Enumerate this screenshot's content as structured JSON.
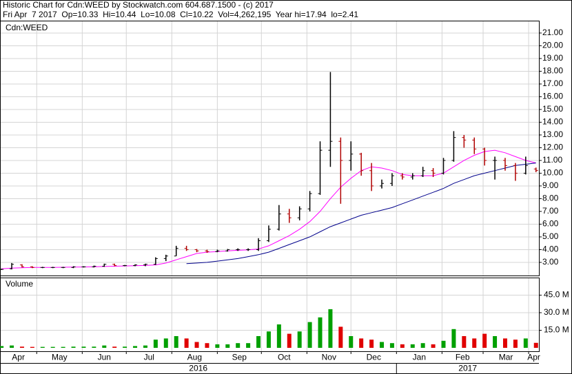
{
  "chart_data": {
    "type": "ohlc",
    "title": "Historic Chart for Cdn:WEED by Stockwatch.com 604.687.1500 - (c) 2017",
    "subtitle": "Fri Apr  7 2017  Op=10.33  Hi=10.44  Lo=10.08  Cl=10.22  Vol=4,262,195  Year hi=17.94  lo=2.41",
    "symbol_label": "Cdn:WEED",
    "volume_label": "Volume",
    "x": [
      0,
      7,
      14,
      21,
      28,
      35,
      42,
      49,
      56,
      63,
      70,
      77,
      84,
      91,
      98,
      105,
      112,
      119,
      126,
      133,
      140,
      147,
      154,
      161,
      168,
      175,
      182,
      189,
      196,
      203,
      210,
      217,
      224,
      231,
      238,
      245,
      252,
      259,
      266,
      273,
      280,
      287,
      294,
      301,
      308,
      315,
      322,
      329,
      336,
      343,
      350,
      357,
      364
    ],
    "open": [
      2.45,
      2.5,
      2.8,
      2.65,
      2.6,
      2.6,
      2.6,
      2.6,
      2.65,
      2.65,
      2.7,
      2.85,
      2.75,
      2.75,
      2.8,
      2.85,
      3.3,
      3.5,
      4.1,
      4.0,
      3.9,
      3.85,
      3.9,
      4.0,
      4.0,
      4.0,
      4.7,
      5.6,
      6.8,
      6.5,
      7.2,
      8.4,
      11.8,
      12.5,
      11.0,
      11.5,
      10.2,
      9.0,
      9.2,
      9.8,
      9.7,
      9.8,
      10.2,
      10.0,
      11.0,
      12.8,
      12.6,
      11.9,
      11.0,
      11.0,
      10.6,
      10.0,
      10.33
    ],
    "high": [
      2.5,
      2.95,
      2.85,
      2.7,
      2.65,
      2.65,
      2.65,
      2.7,
      2.7,
      2.75,
      2.9,
      2.9,
      2.8,
      2.85,
      2.9,
      3.4,
      3.6,
      4.3,
      4.3,
      4.05,
      4.0,
      4.0,
      4.05,
      4.1,
      4.1,
      4.9,
      5.9,
      7.5,
      7.2,
      7.4,
      8.6,
      12.5,
      17.94,
      12.8,
      12.5,
      11.6,
      10.8,
      9.5,
      10.0,
      10.0,
      10.0,
      10.5,
      10.4,
      11.2,
      13.3,
      13.0,
      12.8,
      12.0,
      11.3,
      11.2,
      10.8,
      11.3,
      10.44
    ],
    "low": [
      2.41,
      2.45,
      2.6,
      2.55,
      2.55,
      2.55,
      2.55,
      2.55,
      2.6,
      2.6,
      2.65,
      2.7,
      2.7,
      2.7,
      2.7,
      2.8,
      3.1,
      3.5,
      3.9,
      3.8,
      3.75,
      3.8,
      3.85,
      3.9,
      3.9,
      3.9,
      4.6,
      5.5,
      6.1,
      6.3,
      7.0,
      8.3,
      10.5,
      7.6,
      10.2,
      9.8,
      8.6,
      8.8,
      9.0,
      9.5,
      9.5,
      9.7,
      9.7,
      9.9,
      10.9,
      12.0,
      11.5,
      10.6,
      9.5,
      10.2,
      9.4,
      9.9,
      10.08
    ],
    "close": [
      2.45,
      2.85,
      2.65,
      2.6,
      2.6,
      2.6,
      2.6,
      2.65,
      2.65,
      2.7,
      2.85,
      2.75,
      2.75,
      2.8,
      2.85,
      3.3,
      3.5,
      4.1,
      4.0,
      3.9,
      3.85,
      3.9,
      4.0,
      4.0,
      4.0,
      4.7,
      5.6,
      6.8,
      6.5,
      7.2,
      8.4,
      11.8,
      12.5,
      11.0,
      11.5,
      10.2,
      9.0,
      9.2,
      9.8,
      9.7,
      9.8,
      10.2,
      10.0,
      11.0,
      12.8,
      12.6,
      11.9,
      11.0,
      11.0,
      10.6,
      10.0,
      10.6,
      10.22
    ],
    "volume": [
      1.5,
      2,
      1,
      0.8,
      0.8,
      0.8,
      0.8,
      1,
      1,
      1,
      2,
      1,
      1,
      1.5,
      2,
      7,
      8,
      10,
      8,
      5,
      4,
      3,
      3,
      4,
      4,
      10,
      14,
      20,
      12,
      14,
      22,
      26,
      33,
      18,
      10,
      8,
      7,
      5,
      4,
      3,
      3,
      4,
      3,
      6,
      16,
      10,
      8,
      12,
      10,
      8,
      7,
      8,
      4.26
    ],
    "lines": [
      {
        "color": "#ff00ff",
        "values": [
          2.5,
          2.55,
          2.58,
          2.6,
          2.6,
          2.6,
          2.62,
          2.63,
          2.64,
          2.65,
          2.68,
          2.7,
          2.72,
          2.74,
          2.76,
          2.8,
          2.95,
          3.2,
          3.45,
          3.7,
          3.8,
          3.85,
          3.9,
          3.95,
          3.98,
          4.05,
          4.3,
          4.7,
          5.1,
          5.6,
          6.2,
          7.0,
          8.0,
          8.9,
          9.6,
          10.2,
          10.5,
          10.4,
          10.2,
          9.9,
          9.8,
          9.8,
          9.8,
          10.0,
          10.5,
          11.0,
          11.4,
          11.7,
          11.8,
          11.6,
          11.3,
          11.0,
          10.8
        ]
      },
      {
        "color": "#00008b",
        "values": [
          null,
          null,
          null,
          null,
          null,
          null,
          null,
          null,
          null,
          null,
          null,
          null,
          null,
          null,
          null,
          null,
          null,
          null,
          2.9,
          2.95,
          3.0,
          3.1,
          3.2,
          3.3,
          3.45,
          3.6,
          3.8,
          4.1,
          4.4,
          4.7,
          5.0,
          5.4,
          5.8,
          6.1,
          6.4,
          6.7,
          6.9,
          7.1,
          7.3,
          7.6,
          7.9,
          8.2,
          8.5,
          8.8,
          9.2,
          9.5,
          9.8,
          10.0,
          10.2,
          10.4,
          10.6,
          10.7,
          10.8
        ]
      }
    ],
    "price_up_color": "#000000",
    "price_down_color": "#b00000",
    "volume_up_color": "#00a000",
    "volume_down_color": "#e00000",
    "xlim": [
      -1,
      366
    ],
    "xticks": [
      {
        "value": -6,
        "label": "Apr"
      },
      {
        "value": 24,
        "label": "May"
      },
      {
        "value": 55,
        "label": "Jun"
      },
      {
        "value": 85,
        "label": "Jul"
      },
      {
        "value": 116,
        "label": "Aug"
      },
      {
        "value": 147,
        "label": "Sep"
      },
      {
        "value": 177,
        "label": "Oct"
      },
      {
        "value": 208,
        "label": "Nov"
      },
      {
        "value": 238,
        "label": "Dec"
      },
      {
        "value": 269,
        "label": "Jan"
      },
      {
        "value": 300,
        "label": "Feb"
      },
      {
        "value": 328,
        "label": "Mar"
      },
      {
        "value": 359,
        "label": "Apr"
      }
    ],
    "years": [
      {
        "value": -97,
        "label": "2016"
      },
      {
        "value": 269,
        "label": "2017"
      }
    ],
    "ylim": [
      1.97,
      21.97
    ],
    "yticks": [
      {
        "value": 3,
        "label": "3.00"
      },
      {
        "value": 4,
        "label": "4.00"
      },
      {
        "value": 5,
        "label": "5.00"
      },
      {
        "value": 6,
        "label": "6.00"
      },
      {
        "value": 7,
        "label": "7.00"
      },
      {
        "value": 8,
        "label": "8.00"
      },
      {
        "value": 9,
        "label": "9.00"
      },
      {
        "value": 10,
        "label": "10.00"
      },
      {
        "value": 11,
        "label": "11.00"
      },
      {
        "value": 12,
        "label": "12.00"
      },
      {
        "value": 13,
        "label": "13.00"
      },
      {
        "value": 14,
        "label": "14.00"
      },
      {
        "value": 15,
        "label": "15.00"
      },
      {
        "value": 16,
        "label": "16.00"
      },
      {
        "value": 17,
        "label": "17.00"
      },
      {
        "value": 18,
        "label": "18.00"
      },
      {
        "value": 19,
        "label": "19.00"
      },
      {
        "value": 20,
        "label": "20.00"
      },
      {
        "value": 21,
        "label": "21.00"
      }
    ],
    "volume_ylim": [
      0,
      60
    ],
    "volume_yticks": [
      {
        "value": 15,
        "label": "15.0 M"
      },
      {
        "value": 30,
        "label": "30.0 M"
      },
      {
        "value": 45,
        "label": "45.0 M"
      }
    ],
    "grid": true
  }
}
